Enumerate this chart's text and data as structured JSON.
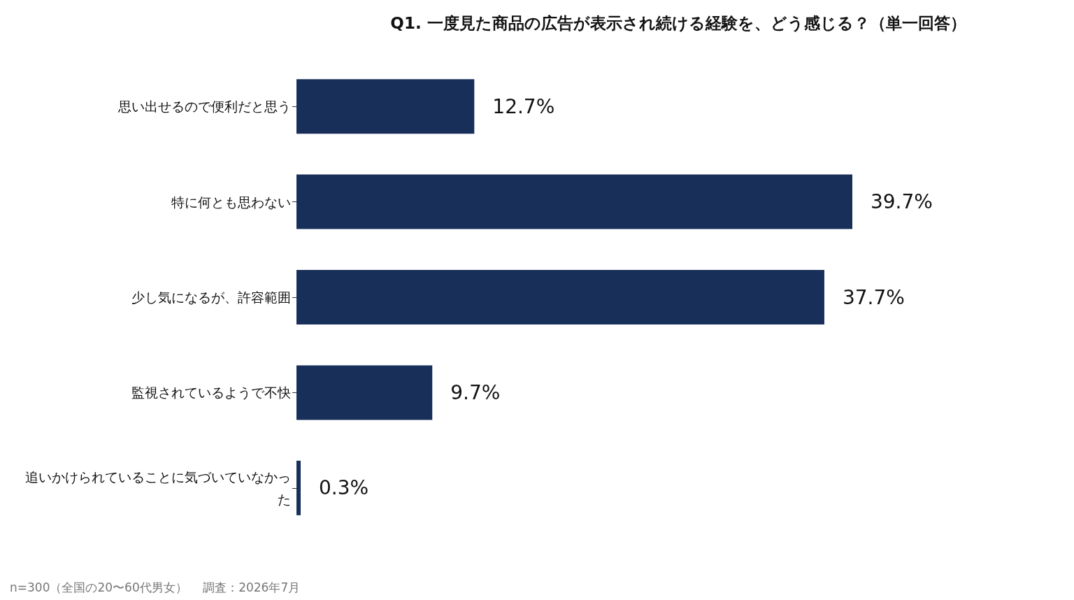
{
  "chart_data": {
    "type": "bar",
    "orientation": "horizontal",
    "title": "Q1. 一度見た商品の広告が表示され続ける経験を、どう感じる？（単一回答）",
    "categories": [
      "思い出せるので便利だと思う",
      "特に何とも思わない",
      "少し気になるが、許容範囲",
      "監視されているようで不快",
      "追いかけられていることに気づいていなかった"
    ],
    "values": [
      12.7,
      39.7,
      37.7,
      9.7,
      0.3
    ],
    "value_labels": [
      "12.7%",
      "39.7%",
      "37.7%",
      "9.7%",
      "0.3%"
    ],
    "color": "#182f5a",
    "tick_labels": "y",
    "annotations": [
      "n=300（全国の20〜60代男女）　 調査：2026年7月"
    ]
  }
}
